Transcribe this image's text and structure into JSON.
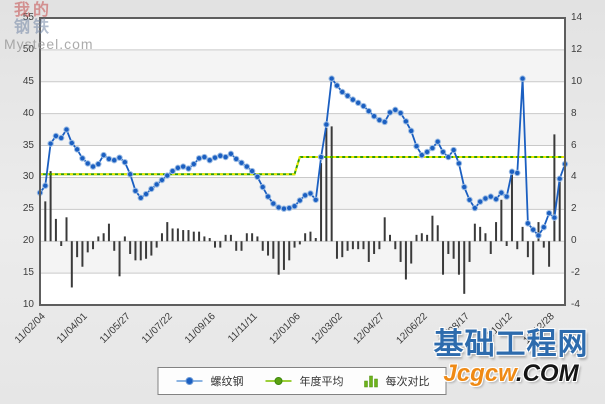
{
  "watermark": {
    "line1": "我的",
    "line2": "钢铁",
    "subtitle": "Mysteel.com"
  },
  "logo": {
    "chinese": "基础工程网",
    "domain_orange": "Jcgcw",
    "domain_black": ".COM"
  },
  "legend": {
    "items": [
      {
        "label": "螺纹钢",
        "marker": "blue-dot-line"
      },
      {
        "label": "年度平均",
        "marker": "green-dot-line"
      },
      {
        "label": "每次对比",
        "marker": "green-bars"
      }
    ]
  },
  "chart_data": {
    "type": "line+bar",
    "grid": true,
    "legend_position": "bottom-center",
    "x_labels": [
      {
        "index": 0,
        "label": "11/02/04"
      },
      {
        "index": 8,
        "label": "11/04/01"
      },
      {
        "index": 16,
        "label": "11/05/27"
      },
      {
        "index": 24,
        "label": "11/07/22"
      },
      {
        "index": 32,
        "label": "11/09/16"
      },
      {
        "index": 40,
        "label": "11/11/11"
      },
      {
        "index": 48,
        "label": "12/01/06"
      },
      {
        "index": 56,
        "label": "12/03/02"
      },
      {
        "index": 64,
        "label": "12/04/27"
      },
      {
        "index": 72,
        "label": "12/06/22"
      },
      {
        "index": 80,
        "label": "12/08/17"
      },
      {
        "index": 88,
        "label": "12/10/12"
      },
      {
        "index": 96,
        "label": "12/12/28"
      }
    ],
    "left_axis": {
      "min": 10,
      "max": 55,
      "step": 5,
      "ticks": [
        "55",
        "50",
        "45",
        "40",
        "35",
        "30",
        "25",
        "20",
        "15",
        "10"
      ]
    },
    "right_axis": {
      "min": -4,
      "max": 14,
      "step": 2,
      "ticks": [
        "14",
        "12",
        "10",
        "8",
        "6",
        "4",
        "2",
        "0",
        "-2",
        "-4"
      ]
    },
    "series": [
      {
        "name": "螺纹钢",
        "type": "line",
        "axis": "left",
        "color": "#1b5fc1",
        "dot_halo": "#9dbde4",
        "values": [
          27.6,
          28.7,
          35.3,
          36.5,
          36.2,
          37.5,
          35.4,
          34.4,
          33.0,
          32.2,
          31.7,
          32.1,
          33.5,
          32.9,
          32.7,
          33.1,
          32.4,
          30.5,
          27.9,
          26.8,
          27.4,
          28.2,
          28.9,
          29.6,
          30.3,
          31.0,
          31.5,
          31.7,
          31.4,
          32.1,
          33.0,
          33.2,
          32.7,
          33.1,
          33.4,
          33.2,
          33.7,
          32.9,
          32.3,
          31.7,
          31.0,
          30.1,
          28.5,
          27.0,
          25.9,
          25.3,
          25.1,
          25.2,
          25.5,
          26.4,
          27.2,
          27.5,
          26.5,
          33.2,
          38.3,
          45.5,
          44.4,
          43.4,
          42.8,
          42.2,
          41.7,
          41.2,
          40.4,
          39.6,
          39.0,
          38.7,
          40.2,
          40.6,
          40.1,
          38.8,
          37.3,
          34.9,
          33.5,
          34.0,
          34.6,
          35.6,
          34.0,
          33.2,
          34.3,
          32.2,
          28.5,
          26.5,
          25.2,
          26.2,
          26.7,
          27.0,
          26.6,
          27.6,
          27.0,
          30.9,
          30.7,
          45.5,
          22.8,
          21.8,
          20.9,
          22.2,
          24.4,
          23.7,
          29.8,
          32.1
        ]
      },
      {
        "name": "年度平均",
        "type": "line",
        "axis": "left",
        "color": "#2f9d05",
        "dash_overlay": "#e9e900",
        "segments": [
          {
            "from": 0,
            "to": 48,
            "value": 30.5
          },
          {
            "from": 49,
            "to": 99,
            "value": 33.2
          }
        ]
      },
      {
        "name": "每次对比",
        "type": "bar",
        "axis": "right",
        "color": "#3a3a3a",
        "values": [
          2.5,
          2.5,
          4.4,
          1.4,
          -0.3,
          1.5,
          -2.9,
          -1.0,
          -1.6,
          -0.7,
          -0.5,
          0.3,
          0.5,
          1.1,
          -0.6,
          -2.2,
          0.3,
          -0.8,
          -1.2,
          -1.2,
          -1.1,
          -0.9,
          -0.4,
          0.5,
          1.2,
          0.8,
          0.8,
          0.7,
          0.7,
          0.6,
          0.6,
          0.3,
          0.2,
          -0.4,
          -0.4,
          0.4,
          0.4,
          -0.6,
          -0.6,
          0.5,
          0.5,
          0.3,
          -0.6,
          -0.9,
          -1.1,
          -2.1,
          -1.8,
          -1.2,
          -0.4,
          -0.2,
          0.5,
          0.6,
          0.2,
          4.9,
          7.1,
          7.2,
          -1.1,
          -1.0,
          -0.6,
          -0.5,
          -0.5,
          -0.5,
          -1.3,
          -0.8,
          -0.5,
          1.5,
          0.4,
          -0.5,
          -1.3,
          -2.4,
          -1.4,
          0.4,
          0.5,
          0.4,
          1.6,
          1.0,
          -2.1,
          -0.8,
          -1.1,
          -2.1,
          -3.3,
          -1.3,
          1.1,
          0.9,
          0.5,
          -0.8,
          1.2,
          2.6,
          -0.3,
          4.3,
          -0.5,
          0.9,
          -1.0,
          -2.1,
          1.2,
          -0.4,
          -1.6,
          6.7,
          3.8,
          2.4
        ]
      }
    ],
    "plot_band_colors": [
      "#ffffff",
      "#f4f4f4"
    ],
    "gridline_color": "#c9c9c9",
    "frame_color": "#5e5e5e"
  }
}
